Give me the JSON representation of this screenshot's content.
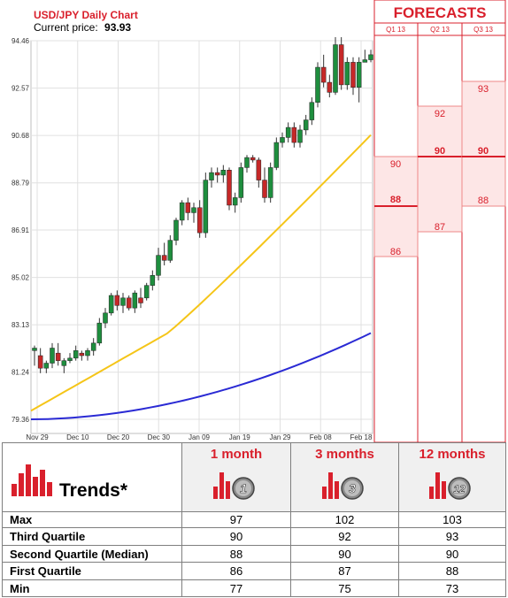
{
  "chart_data": {
    "type": "candlestick",
    "title": "USD/JPY Daily Chart",
    "current_price_label": "Current price:",
    "current_price": "93.93",
    "x_tick_labels": [
      "Nov 29",
      "Dec 10",
      "Dec 20",
      "Dec 30",
      "Jan 09",
      "Jan 19",
      "Jan 29",
      "Feb 08",
      "Feb 18"
    ],
    "y_tick_labels": [
      "94.46",
      "92.57",
      "90.68",
      "88.79",
      "86.91",
      "85.02",
      "83.13",
      "81.24",
      "79.36"
    ],
    "ylim": [
      79.36,
      94.46
    ],
    "grid": true,
    "candles": [
      {
        "o": 82.1,
        "h": 82.3,
        "l": 81.5,
        "c": 82.2
      },
      {
        "o": 81.9,
        "h": 82.2,
        "l": 81.2,
        "c": 81.4
      },
      {
        "o": 81.4,
        "h": 81.7,
        "l": 81.2,
        "c": 81.6
      },
      {
        "o": 81.6,
        "h": 82.4,
        "l": 81.4,
        "c": 82.2
      },
      {
        "o": 82.0,
        "h": 82.4,
        "l": 81.5,
        "c": 81.7
      },
      {
        "o": 81.5,
        "h": 81.8,
        "l": 81.2,
        "c": 81.7
      },
      {
        "o": 81.7,
        "h": 82.0,
        "l": 81.6,
        "c": 81.8
      },
      {
        "o": 81.8,
        "h": 82.3,
        "l": 81.7,
        "c": 82.1
      },
      {
        "o": 82.0,
        "h": 82.1,
        "l": 81.7,
        "c": 81.9
      },
      {
        "o": 81.9,
        "h": 82.2,
        "l": 81.7,
        "c": 82.1
      },
      {
        "o": 82.1,
        "h": 82.6,
        "l": 81.9,
        "c": 82.4
      },
      {
        "o": 82.4,
        "h": 83.4,
        "l": 82.3,
        "c": 83.2
      },
      {
        "o": 83.2,
        "h": 83.8,
        "l": 83.0,
        "c": 83.6
      },
      {
        "o": 83.6,
        "h": 84.4,
        "l": 83.5,
        "c": 84.3
      },
      {
        "o": 84.3,
        "h": 84.5,
        "l": 83.7,
        "c": 83.9
      },
      {
        "o": 83.9,
        "h": 84.4,
        "l": 83.6,
        "c": 84.2
      },
      {
        "o": 84.2,
        "h": 84.3,
        "l": 83.7,
        "c": 83.8
      },
      {
        "o": 83.8,
        "h": 84.5,
        "l": 83.6,
        "c": 84.4
      },
      {
        "o": 84.2,
        "h": 84.6,
        "l": 83.8,
        "c": 84.0
      },
      {
        "o": 84.2,
        "h": 84.8,
        "l": 84.1,
        "c": 84.7
      },
      {
        "o": 84.7,
        "h": 85.3,
        "l": 84.5,
        "c": 85.1
      },
      {
        "o": 85.1,
        "h": 86.2,
        "l": 84.9,
        "c": 85.9
      },
      {
        "o": 85.9,
        "h": 86.4,
        "l": 85.5,
        "c": 85.7
      },
      {
        "o": 85.7,
        "h": 86.7,
        "l": 85.6,
        "c": 86.5
      },
      {
        "o": 86.5,
        "h": 87.4,
        "l": 86.3,
        "c": 87.3
      },
      {
        "o": 87.3,
        "h": 88.1,
        "l": 87.1,
        "c": 88.0
      },
      {
        "o": 88.0,
        "h": 88.2,
        "l": 87.3,
        "c": 87.6
      },
      {
        "o": 87.6,
        "h": 88.0,
        "l": 87.2,
        "c": 87.8
      },
      {
        "o": 87.8,
        "h": 88.1,
        "l": 86.6,
        "c": 86.8
      },
      {
        "o": 86.8,
        "h": 89.2,
        "l": 86.6,
        "c": 88.9
      },
      {
        "o": 88.9,
        "h": 89.4,
        "l": 88.6,
        "c": 89.2
      },
      {
        "o": 89.2,
        "h": 89.4,
        "l": 88.8,
        "c": 89.1
      },
      {
        "o": 89.1,
        "h": 89.5,
        "l": 88.8,
        "c": 89.3
      },
      {
        "o": 89.3,
        "h": 89.4,
        "l": 87.7,
        "c": 87.9
      },
      {
        "o": 87.9,
        "h": 88.4,
        "l": 87.6,
        "c": 88.2
      },
      {
        "o": 88.2,
        "h": 89.6,
        "l": 88.0,
        "c": 89.4
      },
      {
        "o": 89.4,
        "h": 89.9,
        "l": 89.2,
        "c": 89.8
      },
      {
        "o": 89.8,
        "h": 89.9,
        "l": 89.6,
        "c": 89.7
      },
      {
        "o": 89.7,
        "h": 89.8,
        "l": 88.6,
        "c": 88.9
      },
      {
        "o": 88.9,
        "h": 89.4,
        "l": 88.0,
        "c": 88.2
      },
      {
        "o": 88.2,
        "h": 89.6,
        "l": 88.0,
        "c": 89.4
      },
      {
        "o": 89.4,
        "h": 90.6,
        "l": 89.3,
        "c": 90.4
      },
      {
        "o": 90.4,
        "h": 90.8,
        "l": 90.2,
        "c": 90.6
      },
      {
        "o": 90.6,
        "h": 91.2,
        "l": 90.4,
        "c": 91.0
      },
      {
        "o": 91.0,
        "h": 91.2,
        "l": 90.2,
        "c": 90.4
      },
      {
        "o": 90.4,
        "h": 91.1,
        "l": 90.2,
        "c": 90.9
      },
      {
        "o": 90.9,
        "h": 91.5,
        "l": 90.7,
        "c": 91.3
      },
      {
        "o": 91.3,
        "h": 92.2,
        "l": 91.1,
        "c": 92.0
      },
      {
        "o": 92.0,
        "h": 93.6,
        "l": 91.8,
        "c": 93.4
      },
      {
        "o": 93.4,
        "h": 93.9,
        "l": 92.6,
        "c": 92.8
      },
      {
        "o": 92.8,
        "h": 93.1,
        "l": 92.2,
        "c": 92.4
      },
      {
        "o": 92.4,
        "h": 94.6,
        "l": 92.3,
        "c": 94.3
      },
      {
        "o": 94.3,
        "h": 94.6,
        "l": 92.5,
        "c": 92.7
      },
      {
        "o": 92.7,
        "h": 93.8,
        "l": 92.5,
        "c": 93.6
      },
      {
        "o": 93.6,
        "h": 93.8,
        "l": 92.3,
        "c": 92.6
      },
      {
        "o": 92.6,
        "h": 93.8,
        "l": 92.0,
        "c": 93.6
      },
      {
        "o": 93.6,
        "h": 94.1,
        "l": 93.6,
        "c": 93.7
      },
      {
        "o": 93.7,
        "h": 94.1,
        "l": 93.6,
        "c": 93.9
      }
    ],
    "moving_averages": [
      {
        "color": "#f5c518",
        "start": 79.7,
        "end": 90.7,
        "shape": "linear-ish"
      },
      {
        "color": "#2a2ad4",
        "start": 79.36,
        "end": 82.8,
        "shape": "convex"
      }
    ],
    "colors": {
      "up": "#1e8e3e",
      "down": "#c62828",
      "grid": "#e0e0e0",
      "forecast": "#d9202c",
      "forecast_fill": "#fde6e6"
    },
    "forecasts": {
      "title": "FORECASTS",
      "columns": [
        "Q1 13",
        "Q2 13",
        "Q3 13"
      ],
      "q1": {
        "top": "90",
        "median": "88",
        "bottom": "86"
      },
      "q2": {
        "top": "92",
        "median": "90",
        "bottom": "87"
      },
      "q3": {
        "top": "93",
        "median": "90",
        "bottom": "88"
      }
    }
  },
  "trends": {
    "title": "Trends*",
    "columns": [
      {
        "label": "1 month",
        "badge": "1"
      },
      {
        "label": "3 months",
        "badge": "3"
      },
      {
        "label": "12 months",
        "badge": "12"
      }
    ],
    "rows": [
      {
        "label": "Max",
        "values": [
          "97",
          "102",
          "103"
        ]
      },
      {
        "label": "Third Quartile",
        "values": [
          "90",
          "92",
          "93"
        ]
      },
      {
        "label": "Second Quartile (Median)",
        "values": [
          "88",
          "90",
          "90"
        ]
      },
      {
        "label": "First Quartile",
        "values": [
          "86",
          "87",
          "88"
        ]
      },
      {
        "label": "Min",
        "values": [
          "77",
          "75",
          "73"
        ]
      }
    ]
  }
}
